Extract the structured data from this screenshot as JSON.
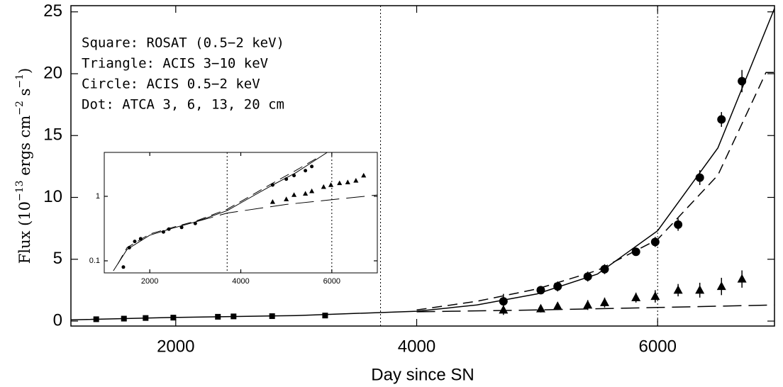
{
  "chart_data": [
    {
      "type": "scatter",
      "xlabel": "Day since SN",
      "ylabel": [
        {
          "text": "Flux (10"
        },
        {
          "text": "−13",
          "sup": true
        },
        {
          "text": " ergs cm"
        },
        {
          "text": "−2",
          "sup": true
        },
        {
          "text": " s"
        },
        {
          "text": "−1",
          "sup": true
        },
        {
          "text": ")"
        }
      ],
      "annotations": [
        "Square: ROSAT (0.5−2 keV)",
        "Triangle: ACIS 3−10 keV",
        "Circle: ACIS 0.5−2 keV",
        "Dot: ATCA 3, 6, 13, 20 cm"
      ],
      "xlim": [
        1130,
        6970
      ],
      "ylim": [
        -0.4,
        25.5
      ],
      "xticks": [
        2000,
        4000,
        6000
      ],
      "yticks": [
        0,
        5,
        10,
        15,
        20,
        25
      ],
      "vlines": [
        3700,
        6000
      ],
      "series": [
        {
          "marker": "square",
          "color": "#000",
          "x": [
            1340,
            1570,
            1750,
            1980,
            2350,
            2480,
            2800,
            3240
          ],
          "values": [
            0.15,
            0.2,
            0.25,
            0.28,
            0.35,
            0.38,
            0.4,
            0.45
          ]
        },
        {
          "marker": "circle",
          "color": "#000",
          "x": [
            4720,
            5030,
            5170,
            5420,
            5560,
            5820,
            5980,
            6170,
            6350,
            6530,
            6700
          ],
          "values": [
            1.6,
            2.5,
            2.8,
            3.6,
            4.2,
            5.6,
            6.4,
            7.8,
            11.6,
            16.3,
            19.4
          ],
          "errors": [
            0.6,
            0.2,
            0.4,
            0.4,
            0.4,
            0.3,
            0.4,
            0.5,
            0.6,
            0.6,
            0.9
          ]
        },
        {
          "marker": "triangle",
          "color": "#000",
          "x": [
            4720,
            5030,
            5170,
            5420,
            5560,
            5820,
            5980,
            6170,
            6350,
            6530,
            6700
          ],
          "values": [
            0.9,
            1.0,
            1.2,
            1.3,
            1.5,
            1.9,
            2.0,
            2.5,
            2.5,
            2.8,
            3.4
          ],
          "errors": [
            0.4,
            0.3,
            0.3,
            0.4,
            0.4,
            0.4,
            0.5,
            0.5,
            0.6,
            0.7,
            0.7
          ]
        }
      ],
      "lines": [
        {
          "style": "solid",
          "x": [
            1130,
            2000,
            3000,
            4000,
            4500,
            5000,
            5500,
            6000,
            6500,
            7000
          ],
          "values": [
            0.1,
            0.3,
            0.45,
            0.8,
            1.3,
            2.2,
            3.8,
            7.3,
            14,
            26
          ]
        },
        {
          "style": "dashed",
          "x": [
            4000,
            4500,
            5000,
            5500,
            6000,
            6500,
            6900,
            6970
          ],
          "values": [
            0.9,
            1.6,
            2.6,
            4.1,
            6.6,
            11.8,
            20.1,
            20.1
          ]
        },
        {
          "style": "longdash",
          "x": [
            4000,
            5000,
            6000,
            6970
          ],
          "values": [
            0.75,
            0.9,
            1.1,
            1.3
          ]
        }
      ]
    },
    {
      "type": "scatter",
      "ylog": true,
      "xlim": [
        1000,
        7000
      ],
      "ylim": [
        0.065,
        4.8
      ],
      "xticks": [
        2000,
        4000,
        6000
      ],
      "yticks": [
        0.1,
        1
      ],
      "vlines": [
        3700,
        6000
      ],
      "series": [
        {
          "marker": "dot",
          "color": "#000",
          "x": [
            1420,
            1550,
            1670,
            1800,
            2300,
            2420,
            2700,
            3000,
            4700,
            5000,
            5170,
            5420,
            5560
          ],
          "values": [
            0.08,
            0.16,
            0.2,
            0.22,
            0.28,
            0.31,
            0.33,
            0.38,
            1.5,
            1.85,
            2.1,
            2.5,
            2.9
          ]
        },
        {
          "marker": "triangle",
          "color": "#000",
          "x": [
            4700,
            5000,
            5170,
            5420,
            5560,
            5820,
            5980,
            6170,
            6350,
            6530,
            6700
          ],
          "values": [
            0.82,
            0.9,
            1.05,
            1.1,
            1.2,
            1.4,
            1.5,
            1.6,
            1.65,
            1.75,
            2.1
          ]
        }
      ],
      "lines": [
        {
          "style": "solid",
          "x": [
            1200,
            1500,
            2000,
            2500,
            3000,
            3700,
            4200,
            4700,
            5200,
            5600,
            5900
          ],
          "values": [
            0.07,
            0.15,
            0.25,
            0.32,
            0.4,
            0.6,
            0.95,
            1.5,
            2.3,
            3.5,
            4.8
          ]
        },
        {
          "style": "dashed",
          "x": [
            1300,
            1500,
            2000,
            2500,
            3000,
            3700,
            4200,
            4700,
            5200,
            5700
          ],
          "values": [
            0.09,
            0.16,
            0.26,
            0.33,
            0.41,
            0.63,
            1.0,
            1.6,
            2.5,
            4.0
          ]
        },
        {
          "style": "longdash",
          "x": [
            3000,
            3700,
            5000,
            7000
          ],
          "values": [
            0.4,
            0.55,
            0.75,
            1.05
          ]
        }
      ]
    }
  ]
}
